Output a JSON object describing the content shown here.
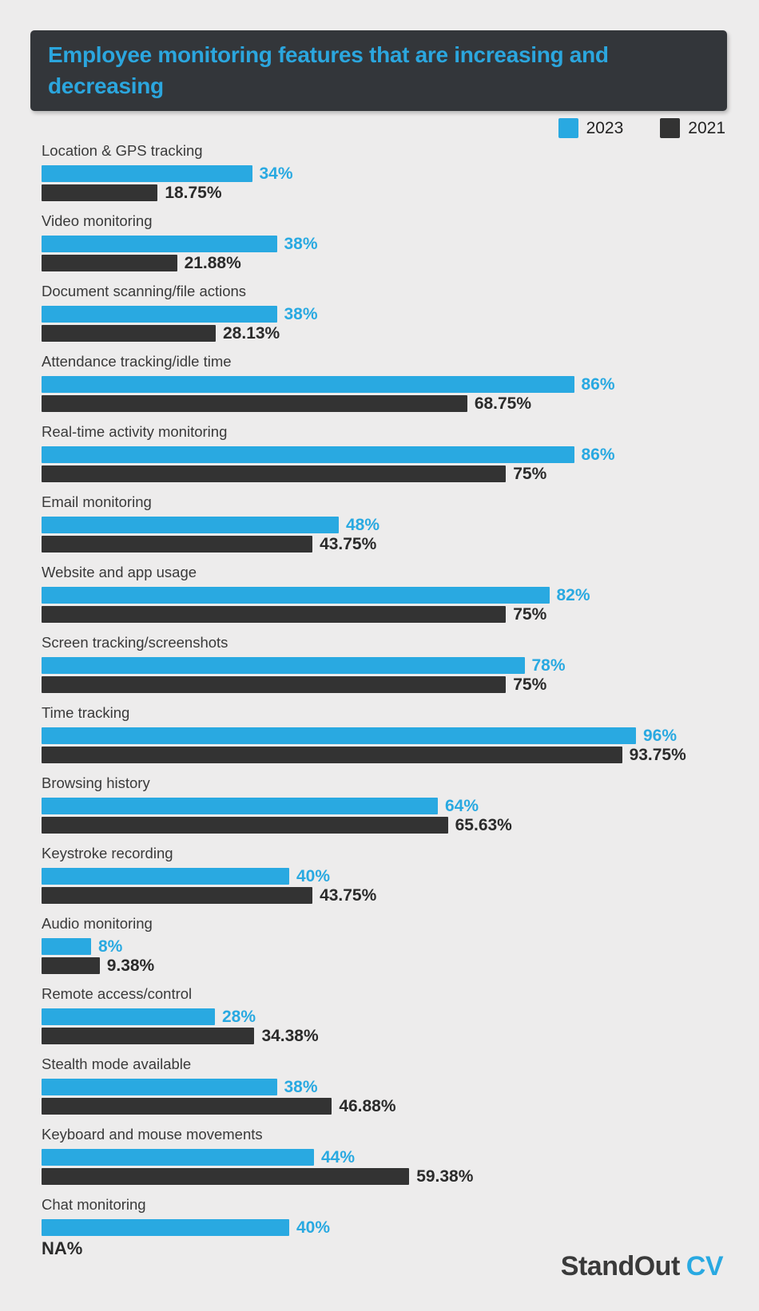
{
  "title": "Employee monitoring features that are increasing and decreasing",
  "colors": {
    "accent_blue": "#29a9e1",
    "bar_dark": "#333333",
    "background": "#edecec",
    "header_bg": "#33363a"
  },
  "legend": [
    {
      "label": "2023",
      "color": "#29a9e1"
    },
    {
      "label": "2021",
      "color": "#333333"
    }
  ],
  "footer": {
    "brand_dark": "StandOut",
    "brand_accent": "CV"
  },
  "chart_data": {
    "type": "bar",
    "orientation": "horizontal",
    "title": "Employee monitoring features that are increasing and decreasing",
    "xlabel": "",
    "ylabel": "",
    "xlim": [
      0,
      100
    ],
    "value_suffix": "%",
    "grid": false,
    "legend_position": "top-right",
    "categories": [
      "Location & GPS tracking",
      "Video monitoring",
      "Document scanning/file actions",
      "Attendance tracking/idle time",
      "Real-time activity monitoring",
      "Email monitoring",
      "Website and app usage",
      "Screen tracking/screenshots",
      "Time tracking",
      "Browsing history",
      "Keystroke recording",
      "Audio monitoring",
      "Remote access/control",
      "Stealth mode available",
      "Keyboard and mouse movements",
      "Chat monitoring"
    ],
    "series": [
      {
        "name": "2023",
        "values": [
          34,
          38,
          38,
          86,
          86,
          48,
          82,
          78,
          96,
          64,
          40,
          8,
          28,
          38,
          44,
          40
        ],
        "labels": [
          "34%",
          "38%",
          "38%",
          "86%",
          "86%",
          "48%",
          "82%",
          "78%",
          "96%",
          "64%",
          "40%",
          "8%",
          "28%",
          "38%",
          "44%",
          "40%"
        ]
      },
      {
        "name": "2021",
        "values": [
          18.75,
          21.88,
          28.13,
          68.75,
          75,
          43.75,
          75,
          75,
          93.75,
          65.63,
          43.75,
          9.38,
          34.38,
          46.88,
          59.38,
          null
        ],
        "labels": [
          "18.75%",
          "21.88%",
          "28.13%",
          "68.75%",
          "75%",
          "43.75%",
          "75%",
          "75%",
          "93.75%",
          "65.63%",
          "43.75%",
          "9.38%",
          "34.38%",
          "46.88%",
          "59.38%",
          "NA%"
        ]
      }
    ]
  }
}
